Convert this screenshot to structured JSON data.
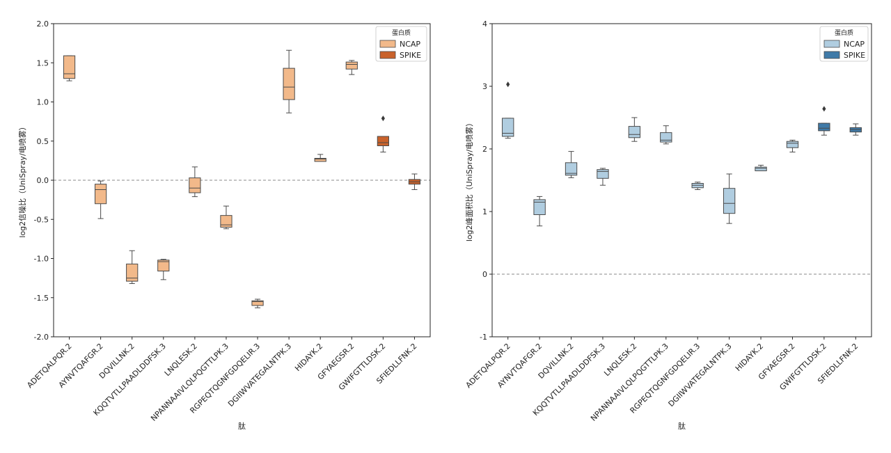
{
  "chart_data": [
    {
      "type": "box",
      "ylabel": "log2信噪比（UniSpray/电喷雾）",
      "xlabel": "肽",
      "ylim": [
        -2.0,
        2.0
      ],
      "yticks": [
        "-2.0",
        "-1.5",
        "-1.0",
        "-0.5",
        "0.0",
        "0.5",
        "1.0",
        "1.5",
        "2.0"
      ],
      "ytick_values": [
        -2.0,
        -1.5,
        -1.0,
        -0.5,
        0.0,
        0.5,
        1.0,
        1.5,
        2.0
      ],
      "reference_line": 0,
      "legend": {
        "title": "蛋白质",
        "position": "top-right",
        "entries": [
          {
            "label": "NCAP",
            "color": "#f2b98a"
          },
          {
            "label": "SPIKE",
            "color": "#c9622b"
          }
        ]
      },
      "categories": [
        "ADETQALPQR.2",
        "AYNVTQAFGR.2",
        "DQVILLNK.2",
        "KQQTVTLLPAADLDDFSK.3",
        "LNQLESK.2",
        "NPANNAAIVLQLPQGTTLPK.3",
        "RGPEQTQGNFGDQELIR.3",
        "DGIIWVATEGALNTPK.3",
        "HIDAYK.2",
        "GFYAEGSR.2",
        "GWIFGTTLDSK.2",
        "SFIEDLLFNK.2"
      ],
      "boxes": [
        {
          "protein": "NCAP",
          "whislo": 1.27,
          "q1": 1.3,
          "med": 1.36,
          "q3": 1.59,
          "whishi": 1.59,
          "fliers": []
        },
        {
          "protein": "NCAP",
          "whislo": -0.49,
          "q1": -0.3,
          "med": -0.12,
          "q3": -0.05,
          "whishi": -0.01,
          "fliers": []
        },
        {
          "protein": "NCAP",
          "whislo": -1.32,
          "q1": -1.29,
          "med": -1.25,
          "q3": -1.07,
          "whishi": -0.9,
          "fliers": []
        },
        {
          "protein": "NCAP",
          "whislo": -1.27,
          "q1": -1.16,
          "med": -1.04,
          "q3": -1.02,
          "whishi": -1.01,
          "fliers": []
        },
        {
          "protein": "NCAP",
          "whislo": -0.21,
          "q1": -0.16,
          "med": -0.1,
          "q3": 0.03,
          "whishi": 0.17,
          "fliers": []
        },
        {
          "protein": "NCAP",
          "whislo": -0.62,
          "q1": -0.6,
          "med": -0.57,
          "q3": -0.45,
          "whishi": -0.33,
          "fliers": []
        },
        {
          "protein": "NCAP",
          "whislo": -1.63,
          "q1": -1.6,
          "med": -1.55,
          "q3": -1.54,
          "whishi": -1.52,
          "fliers": []
        },
        {
          "protein": "NCAP",
          "whislo": 0.86,
          "q1": 1.03,
          "med": 1.19,
          "q3": 1.43,
          "whishi": 1.66,
          "fliers": []
        },
        {
          "protein": "NCAP",
          "whislo": 0.24,
          "q1": 0.24,
          "med": 0.27,
          "q3": 0.28,
          "whishi": 0.33,
          "fliers": []
        },
        {
          "protein": "NCAP",
          "whislo": 1.35,
          "q1": 1.42,
          "med": 1.48,
          "q3": 1.51,
          "whishi": 1.53,
          "fliers": []
        },
        {
          "protein": "SPIKE",
          "whislo": 0.36,
          "q1": 0.44,
          "med": 0.48,
          "q3": 0.56,
          "whishi": 0.56,
          "fliers": [
            0.79
          ]
        },
        {
          "protein": "SPIKE",
          "whislo": -0.12,
          "q1": -0.05,
          "med": -0.02,
          "q3": 0.01,
          "whishi": 0.08,
          "fliers": []
        }
      ]
    },
    {
      "type": "box",
      "ylabel": "log2峰面积比（UniSpray/电喷雾）",
      "xlabel": "肽",
      "ylim": [
        -1,
        4
      ],
      "yticks": [
        "-1",
        "0",
        "1",
        "2",
        "3",
        "4"
      ],
      "ytick_values": [
        -1,
        0,
        1,
        2,
        3,
        4
      ],
      "reference_line": 0,
      "legend": {
        "title": "蛋白质",
        "position": "top-right",
        "entries": [
          {
            "label": "NCAP",
            "color": "#b0cde0"
          },
          {
            "label": "SPIKE",
            "color": "#3f7aa8"
          }
        ]
      },
      "categories": [
        "ADETQALPQR.2",
        "AYNVTQAFGR.2",
        "DQVILLNK.2",
        "KQQTVTLLPAADLDDFSK.3",
        "LNQLESK.2",
        "NPANNAAIVLQLPQGTTLPK.3",
        "RGPEQTQGNFGDQELIR.3",
        "DGIIWVATEGALNTPK.3",
        "HIDAYK.2",
        "GFYAEGSR.2",
        "GWIFGTTLDSK.2",
        "SFIEDLLFNK.2"
      ],
      "boxes": [
        {
          "protein": "NCAP",
          "whislo": 2.17,
          "q1": 2.2,
          "med": 2.25,
          "q3": 2.49,
          "whishi": 2.49,
          "fliers": [
            3.03
          ]
        },
        {
          "protein": "NCAP",
          "whislo": 0.77,
          "q1": 0.95,
          "med": 1.15,
          "q3": 1.19,
          "whishi": 1.24,
          "fliers": []
        },
        {
          "protein": "NCAP",
          "whislo": 1.54,
          "q1": 1.58,
          "med": 1.61,
          "q3": 1.78,
          "whishi": 1.96,
          "fliers": []
        },
        {
          "protein": "NCAP",
          "whislo": 1.42,
          "q1": 1.53,
          "med": 1.64,
          "q3": 1.67,
          "whishi": 1.69,
          "fliers": []
        },
        {
          "protein": "NCAP",
          "whislo": 2.12,
          "q1": 2.18,
          "med": 2.23,
          "q3": 2.36,
          "whishi": 2.5,
          "fliers": []
        },
        {
          "protein": "NCAP",
          "whislo": 2.08,
          "q1": 2.11,
          "med": 2.14,
          "q3": 2.26,
          "whishi": 2.37,
          "fliers": []
        },
        {
          "protein": "NCAP",
          "whislo": 1.35,
          "q1": 1.38,
          "med": 1.42,
          "q3": 1.45,
          "whishi": 1.47,
          "fliers": []
        },
        {
          "protein": "NCAP",
          "whislo": 0.81,
          "q1": 0.97,
          "med": 1.13,
          "q3": 1.37,
          "whishi": 1.6,
          "fliers": []
        },
        {
          "protein": "NCAP",
          "whislo": 1.65,
          "q1": 1.65,
          "med": 1.69,
          "q3": 1.71,
          "whishi": 1.74,
          "fliers": []
        },
        {
          "protein": "NCAP",
          "whislo": 1.95,
          "q1": 2.02,
          "med": 2.09,
          "q3": 2.12,
          "whishi": 2.14,
          "fliers": []
        },
        {
          "protein": "SPIKE",
          "whislo": 2.22,
          "q1": 2.29,
          "med": 2.33,
          "q3": 2.41,
          "whishi": 2.41,
          "fliers": [
            2.64
          ]
        },
        {
          "protein": "SPIKE",
          "whislo": 2.22,
          "q1": 2.27,
          "med": 2.31,
          "q3": 2.34,
          "whishi": 2.4,
          "fliers": []
        }
      ]
    }
  ]
}
